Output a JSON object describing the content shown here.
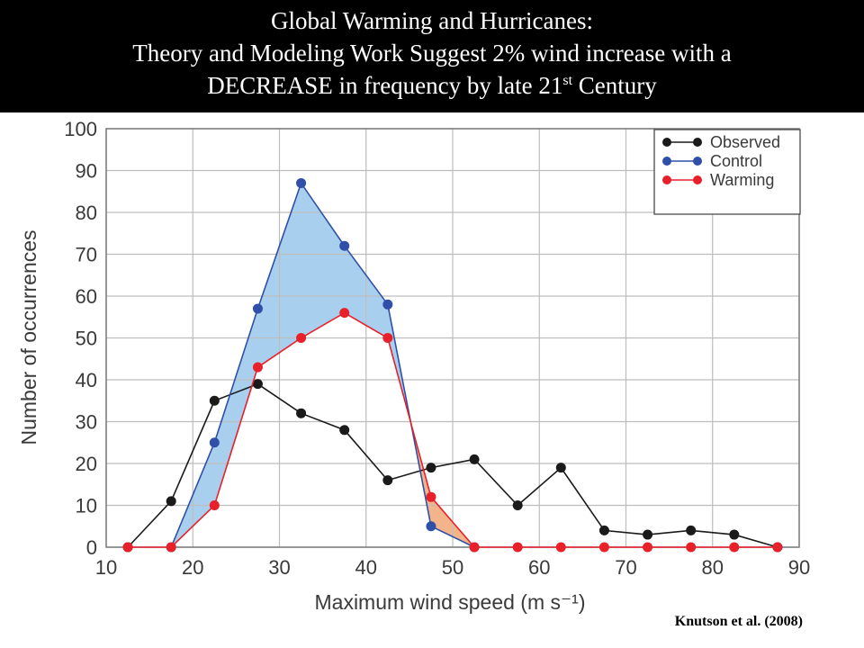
{
  "slide": {
    "title_line1": "Global Warming and Hurricanes:",
    "title_line2": "Theory and Modeling Work Suggest 2% wind increase with a",
    "title_line3_main": "DECREASE in frequency by late 21",
    "title_line3_sup": "st",
    "title_line3_end": " Century",
    "credit": "Knutson et al. (2008)"
  },
  "colors": {
    "observed": "#1a1a1a",
    "control": "#2f4fa8",
    "warming": "#e8202a",
    "fill_blue": "#a8d0ee",
    "fill_orange": "#f3b48c",
    "grid": "#bdbdbd"
  },
  "chart_data": {
    "type": "line",
    "title": "",
    "xlabel": "Maximum wind speed (m s⁻¹)",
    "ylabel": "Number of occurrences",
    "xlim": [
      10,
      90
    ],
    "ylim": [
      0,
      100
    ],
    "xticks": [
      10,
      20,
      30,
      40,
      50,
      60,
      70,
      80,
      90
    ],
    "yticks": [
      0,
      10,
      20,
      30,
      40,
      50,
      60,
      70,
      80,
      90,
      100
    ],
    "grid": true,
    "legend_position": "top-right",
    "series": [
      {
        "name": "Observed",
        "color": "#1a1a1a",
        "x": [
          12.5,
          17.5,
          22.5,
          27.5,
          32.5,
          37.5,
          42.5,
          47.5,
          52.5,
          57.5,
          62.5,
          67.5,
          72.5,
          77.5,
          82.5,
          87.5
        ],
        "y": [
          0,
          11,
          35,
          39,
          32,
          28,
          16,
          19,
          21,
          10,
          19,
          4,
          3,
          4,
          3,
          0
        ]
      },
      {
        "name": "Control",
        "color": "#2f4fa8",
        "x": [
          17.5,
          22.5,
          27.5,
          32.5,
          37.5,
          42.5,
          47.5,
          52.5
        ],
        "y": [
          0,
          25,
          57,
          87,
          72,
          58,
          5,
          0
        ]
      },
      {
        "name": "Warming",
        "color": "#e8202a",
        "x": [
          12.5,
          17.5,
          22.5,
          27.5,
          32.5,
          37.5,
          42.5,
          47.5,
          52.5,
          57.5,
          62.5,
          67.5,
          72.5,
          77.5,
          82.5,
          87.5
        ],
        "y": [
          0,
          0,
          10,
          43,
          50,
          56,
          50,
          12,
          0,
          0,
          0,
          0,
          0,
          0,
          0,
          0
        ]
      }
    ]
  }
}
